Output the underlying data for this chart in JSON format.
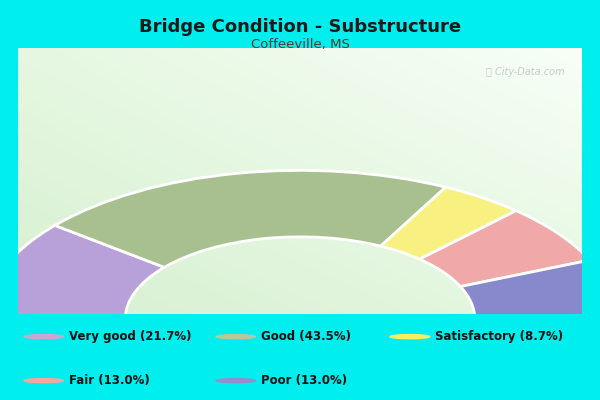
{
  "title": "Bridge Condition - Substructure",
  "subtitle": "Coffeeville, MS",
  "title_color": "#1a1a1a",
  "subtitle_color": "#5a3a2a",
  "background_color": "#00eeee",
  "chart_bg_color": "#e8f5e0",
  "watermark": "ⓘ City-Data.com",
  "segments": [
    {
      "label": "Very good",
      "pct": 21.7,
      "color": "#b8a0d8",
      "legend_color": "#c8a8cc"
    },
    {
      "label": "Good",
      "pct": 43.5,
      "color": "#a8c090",
      "legend_color": "#b8c898"
    },
    {
      "label": "Satisfactory",
      "pct": 8.7,
      "color": "#f8f080",
      "legend_color": "#f8f060"
    },
    {
      "label": "Fair",
      "pct": 13.0,
      "color": "#f0a8a8",
      "legend_color": "#f0a8a0"
    },
    {
      "label": "Poor",
      "pct": 13.0,
      "color": "#8888cc",
      "legend_color": "#9090cc"
    }
  ],
  "figsize": [
    6.0,
    4.0
  ],
  "dpi": 100
}
